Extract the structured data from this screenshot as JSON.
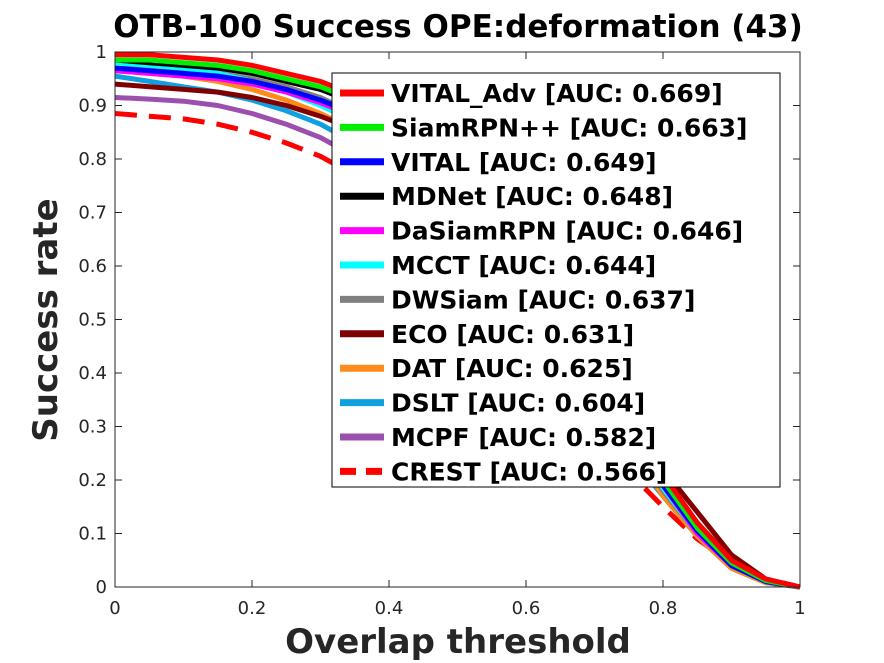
{
  "chart_data": {
    "type": "line",
    "title": "OTB-100 Success OPE:deformation (43)",
    "xlabel": "Overlap threshold",
    "ylabel": "Success rate",
    "xlim": [
      0,
      1
    ],
    "ylim": [
      0,
      1
    ],
    "xticks": [
      0,
      0.2,
      0.4,
      0.6,
      0.8,
      1
    ],
    "xtick_labels": [
      "0",
      "0.2",
      "0.4",
      "0.6",
      "0.8",
      "1"
    ],
    "yticks": [
      0,
      0.1,
      0.2,
      0.3,
      0.4,
      0.5,
      0.6,
      0.7,
      0.8,
      0.9,
      1
    ],
    "ytick_labels": [
      "0",
      "0.1",
      "0.2",
      "0.3",
      "0.4",
      "0.5",
      "0.6",
      "0.7",
      "0.8",
      "0.9",
      "1"
    ],
    "grid": false,
    "legend_position": "top-right",
    "x": [
      0,
      0.05,
      0.1,
      0.15,
      0.2,
      0.25,
      0.3,
      0.35,
      0.4,
      0.45,
      0.5,
      0.55,
      0.6,
      0.65,
      0.7,
      0.75,
      0.8,
      0.85,
      0.9,
      0.95,
      1
    ],
    "series": [
      {
        "name": "VITAL_Adv [AUC: 0.669]",
        "color": "#ff0000",
        "dash": "solid",
        "values": [
          0.995,
          0.995,
          0.99,
          0.985,
          0.975,
          0.96,
          0.945,
          0.92,
          0.89,
          0.85,
          0.8,
          0.74,
          0.66,
          0.56,
          0.44,
          0.32,
          0.21,
          0.12,
          0.05,
          0.015,
          0
        ]
      },
      {
        "name": "SiamRPN++ [AUC: 0.663]",
        "color": "#00ee00",
        "dash": "solid",
        "values": [
          0.985,
          0.985,
          0.98,
          0.975,
          0.965,
          0.95,
          0.935,
          0.91,
          0.88,
          0.84,
          0.79,
          0.73,
          0.65,
          0.55,
          0.43,
          0.31,
          0.2,
          0.11,
          0.045,
          0.012,
          0
        ]
      },
      {
        "name": "VITAL [AUC: 0.649]",
        "color": "#0000ff",
        "dash": "solid",
        "values": [
          0.97,
          0.965,
          0.96,
          0.955,
          0.945,
          0.93,
          0.91,
          0.885,
          0.855,
          0.81,
          0.76,
          0.7,
          0.62,
          0.53,
          0.42,
          0.3,
          0.19,
          0.105,
          0.04,
          0.01,
          0
        ]
      },
      {
        "name": "MDNet [AUC: 0.648]",
        "color": "#000000",
        "dash": "solid",
        "values": [
          0.985,
          0.98,
          0.975,
          0.97,
          0.96,
          0.945,
          0.93,
          0.905,
          0.87,
          0.825,
          0.77,
          0.7,
          0.62,
          0.52,
          0.41,
          0.3,
          0.2,
          0.12,
          0.05,
          0.013,
          0
        ]
      },
      {
        "name": "DaSiamRPN [AUC: 0.646]",
        "color": "#ff00ff",
        "dash": "solid",
        "values": [
          0.965,
          0.96,
          0.955,
          0.95,
          0.94,
          0.925,
          0.905,
          0.88,
          0.85,
          0.81,
          0.76,
          0.69,
          0.61,
          0.52,
          0.41,
          0.3,
          0.19,
          0.1,
          0.04,
          0.01,
          0
        ]
      },
      {
        "name": "MCCT [AUC: 0.644]",
        "color": "#00ffff",
        "dash": "solid",
        "values": [
          0.98,
          0.975,
          0.97,
          0.96,
          0.945,
          0.925,
          0.9,
          0.87,
          0.835,
          0.79,
          0.74,
          0.675,
          0.6,
          0.51,
          0.4,
          0.29,
          0.185,
          0.1,
          0.04,
          0.01,
          0
        ]
      },
      {
        "name": "DWSiam [AUC: 0.637]",
        "color": "#808080",
        "dash": "solid",
        "values": [
          0.97,
          0.968,
          0.965,
          0.96,
          0.95,
          0.935,
          0.915,
          0.885,
          0.85,
          0.805,
          0.75,
          0.68,
          0.6,
          0.5,
          0.39,
          0.28,
          0.18,
          0.1,
          0.04,
          0.01,
          0
        ]
      },
      {
        "name": "ECO [AUC: 0.631]",
        "color": "#800000",
        "dash": "solid",
        "values": [
          0.94,
          0.935,
          0.93,
          0.925,
          0.915,
          0.9,
          0.88,
          0.855,
          0.82,
          0.78,
          0.73,
          0.665,
          0.59,
          0.5,
          0.4,
          0.3,
          0.22,
          0.14,
          0.06,
          0.015,
          0
        ]
      },
      {
        "name": "DAT [AUC: 0.625]",
        "color": "#ff8c1a",
        "dash": "solid",
        "values": [
          0.965,
          0.96,
          0.955,
          0.945,
          0.93,
          0.91,
          0.885,
          0.855,
          0.815,
          0.77,
          0.715,
          0.65,
          0.57,
          0.48,
          0.38,
          0.27,
          0.17,
          0.095,
          0.035,
          0.008,
          0
        ]
      },
      {
        "name": "DSLT [AUC: 0.604]",
        "color": "#0fa0e0",
        "dash": "solid",
        "values": [
          0.955,
          0.945,
          0.935,
          0.925,
          0.91,
          0.89,
          0.865,
          0.83,
          0.79,
          0.74,
          0.68,
          0.61,
          0.53,
          0.44,
          0.34,
          0.25,
          0.17,
          0.095,
          0.035,
          0.008,
          0
        ]
      },
      {
        "name": "MCPF [AUC: 0.582]",
        "color": "#9b4fae",
        "dash": "solid",
        "values": [
          0.915,
          0.912,
          0.908,
          0.9,
          0.885,
          0.865,
          0.84,
          0.805,
          0.765,
          0.715,
          0.655,
          0.59,
          0.515,
          0.43,
          0.34,
          0.25,
          0.17,
          0.1,
          0.04,
          0.01,
          0
        ]
      },
      {
        "name": "CREST [AUC: 0.566]",
        "color": "#ff0000",
        "dash": "dashed",
        "values": [
          0.885,
          0.88,
          0.875,
          0.865,
          0.85,
          0.83,
          0.805,
          0.77,
          0.725,
          0.675,
          0.615,
          0.55,
          0.475,
          0.39,
          0.3,
          0.215,
          0.15,
          0.09,
          0.045,
          0.015,
          0
        ]
      }
    ]
  }
}
